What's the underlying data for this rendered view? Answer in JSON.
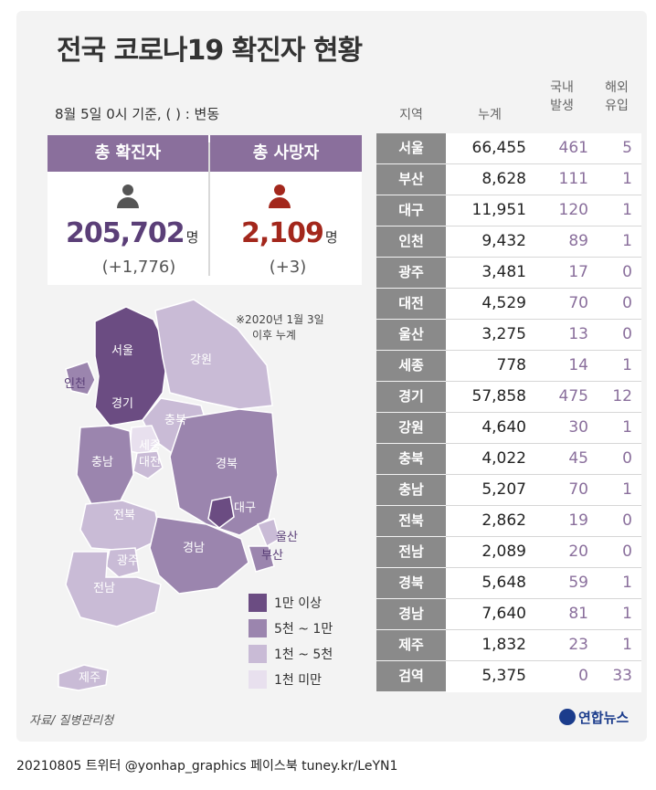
{
  "title": "전국 코로나19 확진자 현황",
  "basis_note": "8월 5일 0시 기준, ( ) : 변동",
  "summary": {
    "confirmed_label": "총 확진자",
    "confirmed_value": "205,702",
    "confirmed_unit": "명",
    "confirmed_change": "(+1,776)",
    "deaths_label": "총 사망자",
    "deaths_value": "2,109",
    "deaths_unit": "명",
    "deaths_change": "(+3)"
  },
  "cumulative_note": [
    "※2020년 1월 3일",
    "이후 누계"
  ],
  "table_headers": {
    "region": "지역",
    "total": "누계",
    "domestic": [
      "국내",
      "발생"
    ],
    "overseas": [
      "해외",
      "유입"
    ]
  },
  "chart_data": {
    "type": "table",
    "columns": [
      "지역",
      "누계",
      "국내 발생",
      "해외 유입"
    ],
    "rows": [
      {
        "region": "서울",
        "total": "66,455",
        "domestic": "461",
        "overseas": "5"
      },
      {
        "region": "부산",
        "total": "8,628",
        "domestic": "111",
        "overseas": "1"
      },
      {
        "region": "대구",
        "total": "11,951",
        "domestic": "120",
        "overseas": "1"
      },
      {
        "region": "인천",
        "total": "9,432",
        "domestic": "89",
        "overseas": "1"
      },
      {
        "region": "광주",
        "total": "3,481",
        "domestic": "17",
        "overseas": "0"
      },
      {
        "region": "대전",
        "total": "4,529",
        "domestic": "70",
        "overseas": "0"
      },
      {
        "region": "울산",
        "total": "3,275",
        "domestic": "13",
        "overseas": "0"
      },
      {
        "region": "세종",
        "total": "778",
        "domestic": "14",
        "overseas": "1"
      },
      {
        "region": "경기",
        "total": "57,858",
        "domestic": "475",
        "overseas": "12"
      },
      {
        "region": "강원",
        "total": "4,640",
        "domestic": "30",
        "overseas": "1"
      },
      {
        "region": "충북",
        "total": "4,022",
        "domestic": "45",
        "overseas": "0"
      },
      {
        "region": "충남",
        "total": "5,207",
        "domestic": "70",
        "overseas": "1"
      },
      {
        "region": "전북",
        "total": "2,862",
        "domestic": "19",
        "overseas": "0"
      },
      {
        "region": "전남",
        "total": "2,089",
        "domestic": "20",
        "overseas": "0"
      },
      {
        "region": "경북",
        "total": "5,648",
        "domestic": "59",
        "overseas": "1"
      },
      {
        "region": "경남",
        "total": "7,640",
        "domestic": "81",
        "overseas": "1"
      },
      {
        "region": "제주",
        "total": "1,832",
        "domestic": "23",
        "overseas": "1"
      },
      {
        "region": "검역",
        "total": "5,375",
        "domestic": "0",
        "overseas": "33"
      }
    ]
  },
  "map": {
    "regions": [
      {
        "name": "서울",
        "tier": 0
      },
      {
        "name": "인천",
        "tier": 1
      },
      {
        "name": "경기",
        "tier": 0
      },
      {
        "name": "강원",
        "tier": 2
      },
      {
        "name": "충북",
        "tier": 2
      },
      {
        "name": "세종",
        "tier": 3
      },
      {
        "name": "대전",
        "tier": 2
      },
      {
        "name": "충남",
        "tier": 1
      },
      {
        "name": "경북",
        "tier": 1
      },
      {
        "name": "대구",
        "tier": 0
      },
      {
        "name": "전북",
        "tier": 2
      },
      {
        "name": "울산",
        "tier": 2
      },
      {
        "name": "부산",
        "tier": 1
      },
      {
        "name": "광주",
        "tier": 2
      },
      {
        "name": "경남",
        "tier": 1
      },
      {
        "name": "전남",
        "tier": 2
      },
      {
        "name": "제주",
        "tier": 2
      }
    ]
  },
  "legend": [
    {
      "label": "1만 이상",
      "color": "#6b4c82"
    },
    {
      "label": "5천 ~ 1만",
      "color": "#9b85ae"
    },
    {
      "label": "1천 ~ 5천",
      "color": "#c9bbd6"
    },
    {
      "label": "1천 미만",
      "color": "#e8e0ee"
    }
  ],
  "colors": {
    "header_purple": "#8a6f9c",
    "confirmed": "#5b3f78",
    "deaths": "#a3271c",
    "region_cell": "#8a8a8a"
  },
  "source": "자료/ 질병관리청",
  "logo": "연합뉴스",
  "footer": "20210805 트위터 @yonhap_graphics  페이스북 tuney.kr/LeYN1"
}
